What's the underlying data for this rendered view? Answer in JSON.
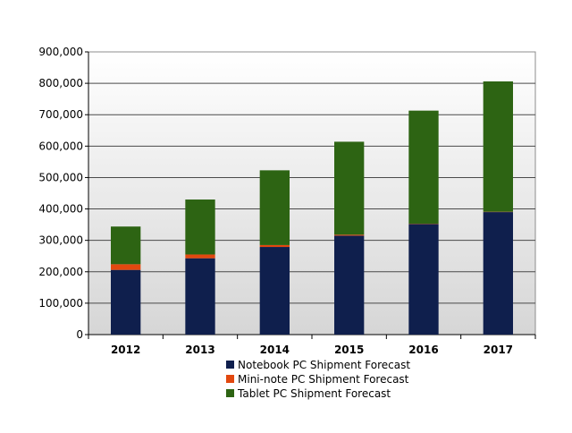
{
  "chart_data": {
    "type": "bar",
    "stacked": true,
    "categories": [
      "2012",
      "2013",
      "2014",
      "2015",
      "2016",
      "2017"
    ],
    "series": [
      {
        "name": "Notebook PC Shipment Forecast",
        "color": "#0f1f4d",
        "values": [
          206000,
          243000,
          279000,
          315000,
          352000,
          390000
        ]
      },
      {
        "name": "Mini-note PC Shipment Forecast",
        "color": "#e2480f",
        "values": [
          18000,
          12000,
          6000,
          3000,
          1000,
          1000
        ]
      },
      {
        "name": "Tablet PC Shipment Forecast",
        "color": "#2d6413",
        "values": [
          120000,
          175000,
          238000,
          296000,
          360000,
          415000
        ]
      }
    ],
    "ylim": [
      0,
      900000
    ],
    "yticks": [
      0,
      100000,
      200000,
      300000,
      400000,
      500000,
      600000,
      700000,
      800000,
      900000
    ],
    "ytick_labels": [
      "0",
      "100,000",
      "200,000",
      "300,000",
      "400,000",
      "500,000",
      "600,000",
      "700,000",
      "800,000",
      "900,000"
    ],
    "title": "",
    "xlabel": "",
    "ylabel": "",
    "grid": true,
    "legend_position": "bottom-center"
  }
}
